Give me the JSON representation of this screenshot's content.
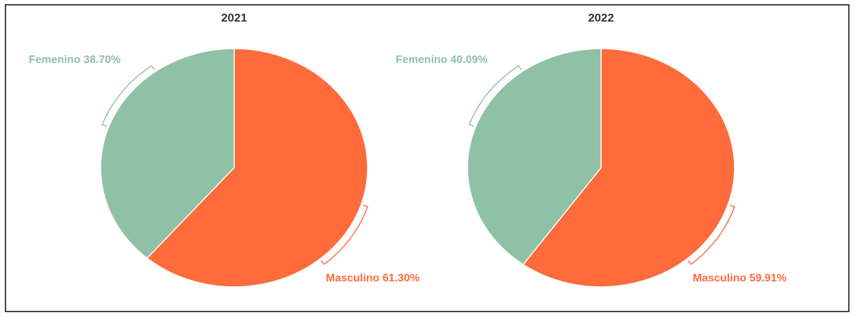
{
  "chart_data": [
    {
      "type": "pie",
      "title": "2021",
      "categories": [
        "Masculino",
        "Femenino"
      ],
      "values": [
        61.3,
        38.7
      ],
      "value_labels": [
        "61.30%",
        "38.70%"
      ],
      "colors": [
        "#ff6b3b",
        "#8fc1a6"
      ]
    },
    {
      "type": "pie",
      "title": "2022",
      "categories": [
        "Masculino",
        "Femenino"
      ],
      "values": [
        59.91,
        40.09
      ],
      "value_labels": [
        "59.91%",
        "40.09%"
      ],
      "colors": [
        "#ff6b3b",
        "#8fc1a6"
      ]
    }
  ]
}
